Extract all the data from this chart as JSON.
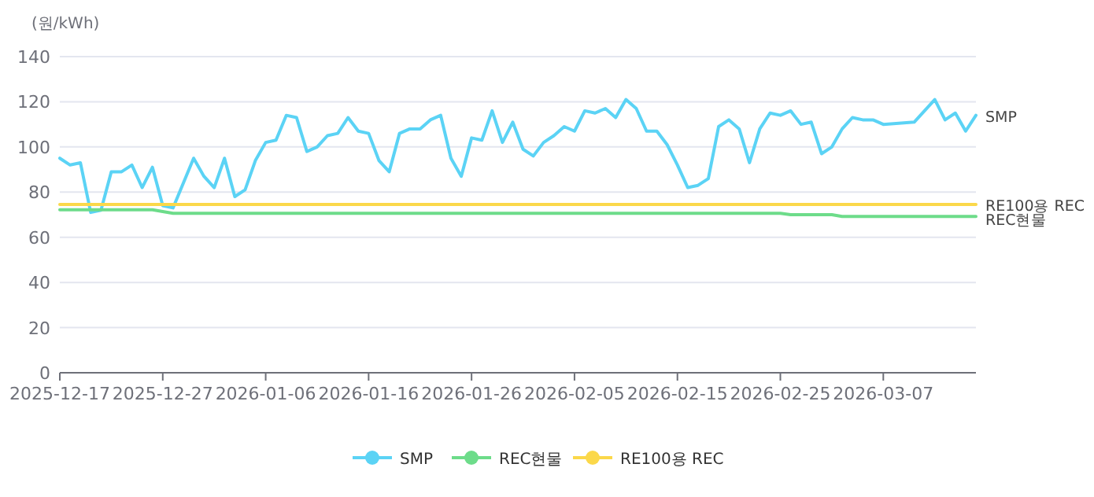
{
  "chart_data": {
    "type": "line",
    "ylabel": "(원/kWh)",
    "ylim": [
      0,
      140
    ],
    "yticks": [
      0,
      20,
      40,
      60,
      80,
      100,
      120,
      140
    ],
    "xlim": [
      "2025-12-17",
      "2026-03-16"
    ],
    "xticks": [
      "2025-12-17",
      "2025-12-27",
      "2026-01-06",
      "2026-01-16",
      "2026-01-26",
      "2026-02-05",
      "2026-02-15",
      "2026-02-25",
      "2026-03-07"
    ],
    "grid": "y",
    "legend": "bottom",
    "series": [
      {
        "name": "SMP",
        "color": "#5bd3f5",
        "x": [
          "2025-12-17",
          "2025-12-18",
          "2025-12-19",
          "2025-12-20",
          "2025-12-21",
          "2025-12-22",
          "2025-12-23",
          "2025-12-24",
          "2025-12-25",
          "2025-12-26",
          "2025-12-27",
          "2025-12-28",
          "2025-12-30",
          "2025-12-31",
          "2026-01-01",
          "2026-01-02",
          "2026-01-03",
          "2026-01-04",
          "2026-01-05",
          "2026-01-06",
          "2026-01-07",
          "2026-01-08",
          "2026-01-09",
          "2026-01-10",
          "2026-01-11",
          "2026-01-12",
          "2026-01-13",
          "2026-01-14",
          "2026-01-15",
          "2026-01-16",
          "2026-01-17",
          "2026-01-18",
          "2026-01-19",
          "2026-01-20",
          "2026-01-21",
          "2026-01-22",
          "2026-01-23",
          "2026-01-24",
          "2026-01-25",
          "2026-01-26",
          "2026-01-27",
          "2026-01-28",
          "2026-01-29",
          "2026-01-30",
          "2026-01-31",
          "2026-02-01",
          "2026-02-02",
          "2026-02-03",
          "2026-02-04",
          "2026-02-05",
          "2026-02-06",
          "2026-02-07",
          "2026-02-08",
          "2026-02-09",
          "2026-02-10",
          "2026-02-11",
          "2026-02-12",
          "2026-02-13",
          "2026-02-14",
          "2026-02-15",
          "2026-02-16",
          "2026-02-17",
          "2026-02-18",
          "2026-02-19",
          "2026-02-20",
          "2026-02-21",
          "2026-02-22",
          "2026-02-23",
          "2026-02-24",
          "2026-02-25",
          "2026-02-26",
          "2026-02-27",
          "2026-02-28",
          "2026-03-01",
          "2026-03-02",
          "2026-03-03",
          "2026-03-04",
          "2026-03-05",
          "2026-03-06",
          "2026-03-07",
          "2026-03-10",
          "2026-03-12",
          "2026-03-13",
          "2026-03-14",
          "2026-03-15",
          "2026-03-16"
        ],
        "values": [
          95,
          92,
          93,
          71,
          72,
          89,
          89,
          92,
          82,
          91,
          74,
          73,
          95,
          87,
          82,
          95,
          78,
          81,
          94,
          102,
          103,
          114,
          113,
          98,
          100,
          105,
          106,
          113,
          107,
          106,
          94,
          89,
          106,
          108,
          108,
          112,
          114,
          95,
          87,
          104,
          103,
          116,
          102,
          111,
          99,
          96,
          102,
          105,
          109,
          107,
          116,
          115,
          117,
          113,
          121,
          117,
          107,
          107,
          101,
          92,
          82,
          83,
          86,
          109,
          112,
          108,
          93,
          108,
          115,
          114,
          116,
          110,
          111,
          97,
          100,
          108,
          113,
          112,
          112,
          110,
          111,
          121,
          112,
          115,
          107,
          114
        ]
      },
      {
        "name": "REC현물",
        "color": "#6ddc8a",
        "x": [
          "2025-12-17",
          "2025-12-26",
          "2025-12-28",
          "2026-02-25",
          "2026-02-26",
          "2026-03-02",
          "2026-03-03",
          "2026-03-16"
        ],
        "values": [
          72.2,
          72.2,
          70.6,
          70.6,
          70.0,
          70.0,
          69.2,
          69.2
        ]
      },
      {
        "name": "RE100용 REC",
        "color": "#fbd84a",
        "x": [
          "2025-12-17",
          "2026-03-16"
        ],
        "values": [
          74.5,
          74.5
        ]
      }
    ]
  }
}
